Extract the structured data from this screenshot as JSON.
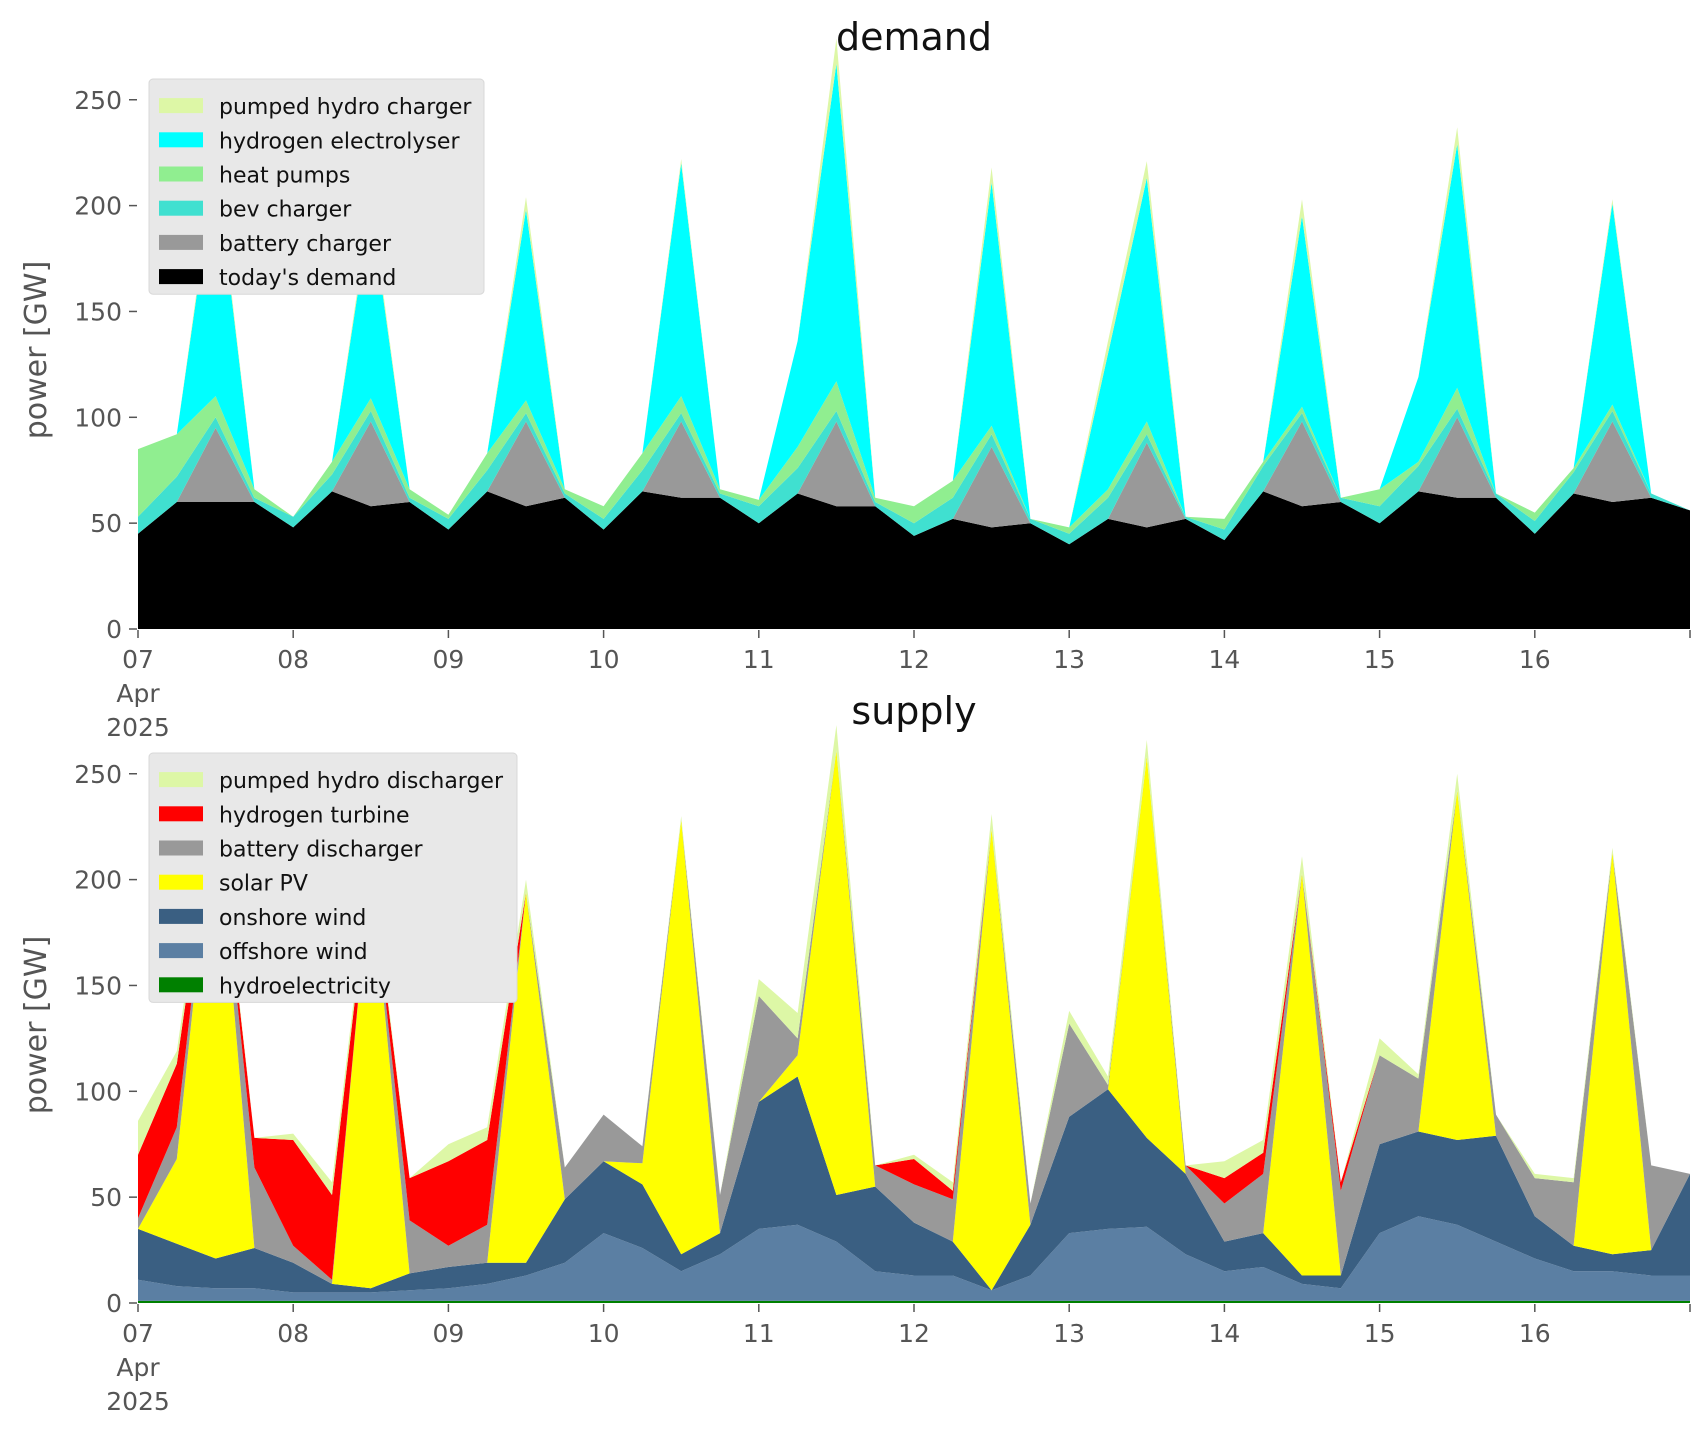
{
  "chart_data": [
    {
      "type": "area",
      "stacked": true,
      "title": "demand",
      "ylabel": "power [GW]",
      "xlabel": "",
      "xlim": [
        "2025-04-07",
        "2025-04-17"
      ],
      "ylim": [
        0,
        265
      ],
      "yticks": [
        0,
        50,
        100,
        150,
        200,
        250
      ],
      "xticks": [
        {
          "day": 7,
          "label": "07",
          "sub": [
            "Apr",
            "2025"
          ]
        },
        {
          "day": 8,
          "label": "08"
        },
        {
          "day": 9,
          "label": "09"
        },
        {
          "day": 10,
          "label": "10"
        },
        {
          "day": 11,
          "label": "11"
        },
        {
          "day": 12,
          "label": "12"
        },
        {
          "day": 13,
          "label": "13"
        },
        {
          "day": 14,
          "label": "14"
        },
        {
          "day": 15,
          "label": "15"
        },
        {
          "day": 16,
          "label": "16"
        }
      ],
      "grid": false,
      "legend_position": "top-left",
      "legend": [
        "pumped hydro charger",
        "hydrogen electrolyser",
        "heat pumps",
        "bev charger",
        "battery charger",
        "today's demand"
      ],
      "x_dates": [
        "2025-04-07",
        "2025-04-07 06:00",
        "2025-04-07 12:00",
        "2025-04-07 18:00",
        "2025-04-08",
        "2025-04-08 06:00",
        "2025-04-08 12:00",
        "2025-04-08 18:00",
        "2025-04-09",
        "2025-04-09 06:00",
        "2025-04-09 12:00",
        "2025-04-09 18:00",
        "2025-04-10",
        "2025-04-10 06:00",
        "2025-04-10 12:00",
        "2025-04-10 18:00",
        "2025-04-11",
        "2025-04-11 06:00",
        "2025-04-11 12:00",
        "2025-04-11 18:00",
        "2025-04-12",
        "2025-04-12 06:00",
        "2025-04-12 12:00",
        "2025-04-12 18:00",
        "2025-04-13",
        "2025-04-13 06:00",
        "2025-04-13 12:00",
        "2025-04-13 18:00",
        "2025-04-14",
        "2025-04-14 06:00",
        "2025-04-14 12:00",
        "2025-04-14 18:00",
        "2025-04-15",
        "2025-04-15 06:00",
        "2025-04-15 12:00",
        "2025-04-15 18:00",
        "2025-04-16",
        "2025-04-16 06:00",
        "2025-04-16 12:00",
        "2025-04-16 18:00",
        "2025-04-17"
      ],
      "series": [
        {
          "name": "today's demand",
          "color": "#000000",
          "values": [
            45,
            60,
            60,
            60,
            48,
            65,
            58,
            60,
            47,
            65,
            58,
            62,
            47,
            65,
            62,
            62,
            50,
            64,
            58,
            58,
            44,
            52,
            48,
            50,
            40,
            52,
            48,
            52,
            42,
            65,
            58,
            60,
            50,
            65,
            62,
            62,
            45,
            64,
            60,
            62,
            56
          ]
        },
        {
          "name": "battery charger",
          "color": "#999999",
          "values": [
            0,
            0,
            35,
            0,
            0,
            0,
            40,
            0,
            0,
            0,
            40,
            0,
            0,
            0,
            36,
            0,
            0,
            0,
            40,
            0,
            0,
            0,
            38,
            0,
            0,
            0,
            40,
            0,
            0,
            0,
            40,
            0,
            0,
            0,
            38,
            0,
            0,
            0,
            38,
            0,
            0
          ]
        },
        {
          "name": "bev charger",
          "color": "#40e0d0",
          "values": [
            8,
            12,
            5,
            2,
            5,
            8,
            5,
            2,
            5,
            10,
            4,
            2,
            5,
            10,
            4,
            2,
            8,
            12,
            5,
            2,
            6,
            10,
            6,
            2,
            5,
            10,
            4,
            1,
            5,
            12,
            4,
            2,
            8,
            12,
            4,
            2,
            6,
            10,
            5,
            2,
            0
          ]
        },
        {
          "name": "heat pumps",
          "color": "#90ee90",
          "values": [
            32,
            20,
            10,
            4,
            0,
            6,
            6,
            4,
            2,
            8,
            6,
            2,
            6,
            8,
            8,
            2,
            3,
            10,
            14,
            2,
            8,
            8,
            4,
            0,
            3,
            4,
            6,
            0,
            5,
            2,
            3,
            0,
            8,
            2,
            10,
            0,
            4,
            2,
            3,
            0,
            0
          ]
        },
        {
          "name": "hydrogen electrolyser",
          "color": "#00ffff",
          "values": [
            0,
            0,
            110,
            0,
            0,
            0,
            90,
            0,
            0,
            0,
            90,
            0,
            0,
            0,
            110,
            0,
            0,
            50,
            150,
            0,
            0,
            0,
            115,
            0,
            0,
            64,
            115,
            0,
            0,
            0,
            90,
            0,
            0,
            40,
            115,
            0,
            0,
            0,
            95,
            0,
            0
          ]
        },
        {
          "name": "pumped hydro charger",
          "color": "#ddf7a6",
          "values": [
            0,
            0,
            4,
            0,
            0,
            0,
            4,
            0,
            0,
            0,
            6,
            0,
            0,
            0,
            2,
            0,
            0,
            0,
            12,
            0,
            0,
            0,
            7,
            0,
            0,
            6,
            8,
            0,
            0,
            0,
            8,
            0,
            0,
            0,
            8,
            0,
            0,
            0,
            2,
            0,
            0
          ]
        }
      ]
    },
    {
      "type": "area",
      "stacked": true,
      "title": "supply",
      "ylabel": "power [GW]",
      "xlabel": "",
      "xlim": [
        "2025-04-07",
        "2025-04-17"
      ],
      "ylim": [
        0,
        265
      ],
      "yticks": [
        0,
        50,
        100,
        150,
        200,
        250
      ],
      "xticks": [
        {
          "day": 7,
          "label": "07",
          "sub": [
            "Apr",
            "2025"
          ]
        },
        {
          "day": 8,
          "label": "08"
        },
        {
          "day": 9,
          "label": "09"
        },
        {
          "day": 10,
          "label": "10"
        },
        {
          "day": 11,
          "label": "11"
        },
        {
          "day": 12,
          "label": "12"
        },
        {
          "day": 13,
          "label": "13"
        },
        {
          "day": 14,
          "label": "14"
        },
        {
          "day": 15,
          "label": "15"
        },
        {
          "day": 16,
          "label": "16"
        }
      ],
      "grid": false,
      "legend_position": "top-left",
      "legend": [
        "pumped hydro discharger",
        "hydrogen turbine",
        "battery discharger",
        "solar PV",
        "onshore wind",
        "offshore wind",
        "hydroelectricity"
      ],
      "x_dates": [
        "2025-04-07",
        "2025-04-07 06:00",
        "2025-04-07 12:00",
        "2025-04-07 18:00",
        "2025-04-08",
        "2025-04-08 06:00",
        "2025-04-08 12:00",
        "2025-04-08 18:00",
        "2025-04-09",
        "2025-04-09 06:00",
        "2025-04-09 12:00",
        "2025-04-09 18:00",
        "2025-04-10",
        "2025-04-10 06:00",
        "2025-04-10 12:00",
        "2025-04-10 18:00",
        "2025-04-11",
        "2025-04-11 06:00",
        "2025-04-11 12:00",
        "2025-04-11 18:00",
        "2025-04-12",
        "2025-04-12 06:00",
        "2025-04-12 12:00",
        "2025-04-12 18:00",
        "2025-04-13",
        "2025-04-13 06:00",
        "2025-04-13 12:00",
        "2025-04-13 18:00",
        "2025-04-14",
        "2025-04-14 06:00",
        "2025-04-14 12:00",
        "2025-04-14 18:00",
        "2025-04-15",
        "2025-04-15 06:00",
        "2025-04-15 12:00",
        "2025-04-15 18:00",
        "2025-04-16",
        "2025-04-16 06:00",
        "2025-04-16 12:00",
        "2025-04-16 18:00",
        "2025-04-17"
      ],
      "series": [
        {
          "name": "hydroelectricity",
          "color": "#008000",
          "values": [
            1,
            1,
            1,
            1,
            1,
            1,
            1,
            1,
            1,
            1,
            1,
            1,
            1,
            1,
            1,
            1,
            1,
            1,
            1,
            1,
            1,
            1,
            1,
            1,
            1,
            1,
            1,
            1,
            1,
            1,
            1,
            1,
            1,
            1,
            1,
            1,
            1,
            1,
            1,
            1,
            1
          ]
        },
        {
          "name": "offshore wind",
          "color": "#5b7fa3",
          "values": [
            10,
            7,
            6,
            6,
            4,
            4,
            4,
            5,
            6,
            8,
            12,
            18,
            32,
            25,
            14,
            22,
            34,
            36,
            28,
            14,
            12,
            12,
            5,
            12,
            32,
            34,
            35,
            22,
            14,
            16,
            8,
            6,
            32,
            40,
            36,
            28,
            20,
            14,
            14,
            12,
            12
          ]
        },
        {
          "name": "onshore wind",
          "color": "#3a5f82",
          "values": [
            24,
            20,
            14,
            19,
            14,
            4,
            2,
            8,
            10,
            10,
            6,
            30,
            34,
            30,
            8,
            10,
            60,
            70,
            22,
            40,
            25,
            16,
            0,
            24,
            55,
            66,
            42,
            38,
            14,
            16,
            4,
            6,
            42,
            40,
            40,
            50,
            20,
            12,
            8,
            12,
            48
          ]
        },
        {
          "name": "solar PV",
          "color": "#ffff00",
          "values": [
            0,
            40,
            220,
            0,
            0,
            0,
            200,
            0,
            0,
            0,
            175,
            0,
            0,
            10,
            205,
            0,
            0,
            10,
            210,
            0,
            0,
            0,
            218,
            0,
            0,
            0,
            180,
            0,
            0,
            0,
            190,
            0,
            0,
            0,
            165,
            0,
            0,
            0,
            190,
            0,
            0
          ]
        },
        {
          "name": "battery discharger",
          "color": "#999999",
          "values": [
            5,
            15,
            0,
            38,
            8,
            2,
            0,
            25,
            10,
            18,
            0,
            15,
            22,
            8,
            0,
            18,
            50,
            8,
            0,
            10,
            18,
            20,
            0,
            10,
            44,
            2,
            0,
            4,
            18,
            28,
            0,
            40,
            42,
            25,
            0,
            10,
            18,
            30,
            0,
            40,
            0
          ]
        },
        {
          "name": "hydrogen turbine",
          "color": "#ff0000",
          "values": [
            30,
            30,
            0,
            14,
            50,
            40,
            0,
            20,
            40,
            40,
            0,
            0,
            0,
            0,
            0,
            0,
            0,
            0,
            0,
            0,
            12,
            4,
            0,
            0,
            0,
            0,
            0,
            0,
            12,
            10,
            0,
            4,
            0,
            0,
            0,
            0,
            0,
            0,
            0,
            0,
            0
          ]
        },
        {
          "name": "pumped hydro discharger",
          "color": "#ddf7a6",
          "values": [
            16,
            6,
            4,
            0,
            3,
            6,
            4,
            0,
            8,
            6,
            6,
            0,
            0,
            0,
            2,
            0,
            8,
            12,
            12,
            0,
            2,
            4,
            7,
            0,
            6,
            4,
            8,
            0,
            8,
            6,
            8,
            0,
            8,
            2,
            8,
            0,
            2,
            2,
            2,
            0,
            0
          ]
        }
      ]
    }
  ]
}
